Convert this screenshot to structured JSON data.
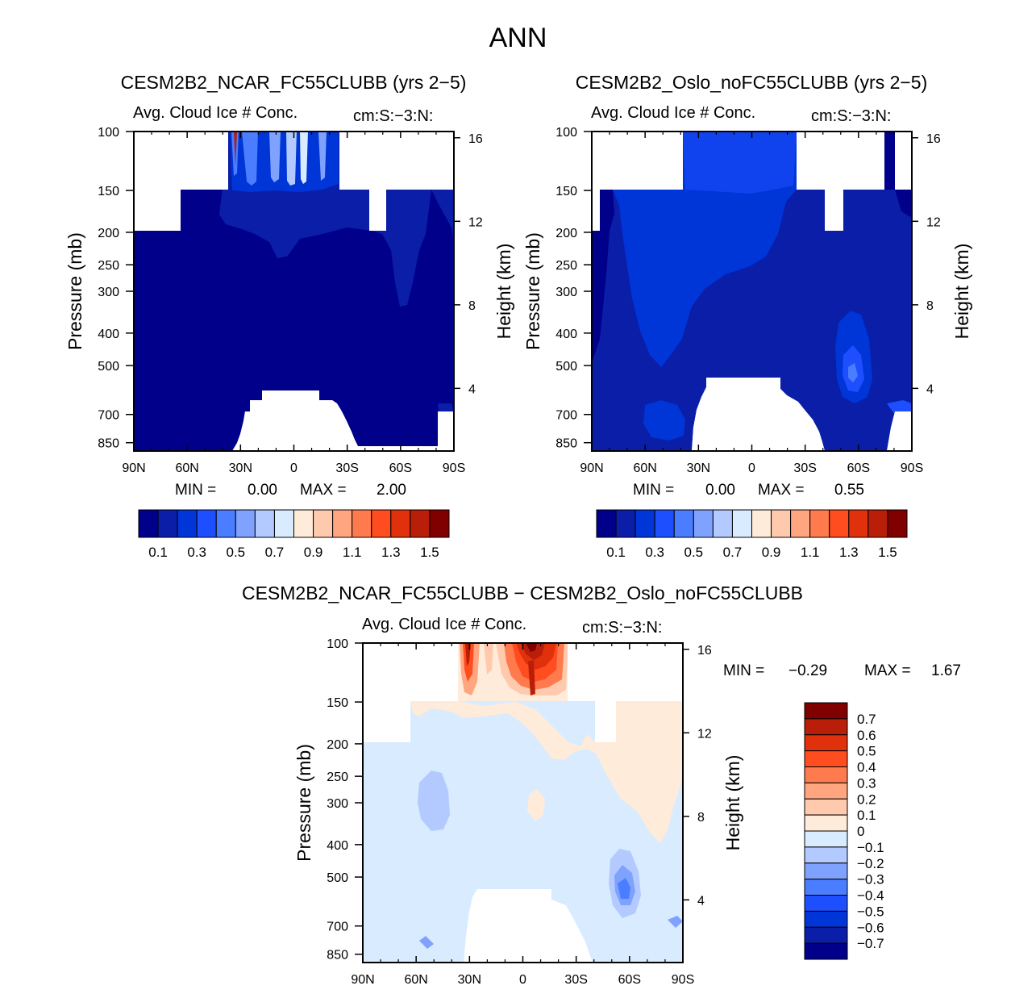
{
  "page_title": "ANN",
  "colors": {
    "left_scale": [
      "#00008b",
      "#0a1ea8",
      "#0035d8",
      "#1e4fff",
      "#4a7dff",
      "#7fa2ff",
      "#b2caff",
      "#d9ebff",
      "#ffebd9",
      "#ffc9ad",
      "#ffa680",
      "#ff7a4d",
      "#ff4d1f",
      "#e0300c",
      "#b81e08",
      "#800000"
    ],
    "diff_scale": [
      "#00008b",
      "#0a1ea8",
      "#0035d8",
      "#1e4fff",
      "#4a7dff",
      "#7fa2ff",
      "#b2caff",
      "#d9ebff",
      "#ffebd9",
      "#ffc9ad",
      "#ffa680",
      "#ff7a4d",
      "#ff4d1f",
      "#e0300c",
      "#b81e08",
      "#800000"
    ]
  },
  "chart_data": [
    {
      "type": "heatmap",
      "id": "top-left",
      "case_title": "CESM2B2_NCAR_FC55CLUBB (yrs 2−5)",
      "variable": "Avg. Cloud Ice # Conc.",
      "units": "cm:S:−3:N:",
      "ylabel": "Pressure (mb)",
      "ylabel_right": "Height (km)",
      "x_ticks": [
        "90N",
        "60N",
        "30N",
        "0",
        "30S",
        "60S",
        "90S"
      ],
      "y_ticks": [
        "100",
        "150",
        "200",
        "250",
        "300",
        "400",
        "500",
        "700",
        "850"
      ],
      "y_right_ticks": [
        "16",
        "12",
        "8",
        "4"
      ],
      "xlim": [
        90,
        -90
      ],
      "ylim": [
        100,
        900
      ],
      "min_label": "MIN =",
      "min_value": "0.00",
      "max_label": "MAX =",
      "max_value": "2.00",
      "colorbar_labels": [
        "0.1",
        "0.3",
        "0.5",
        "0.7",
        "0.9",
        "1.1",
        "1.3",
        "1.5"
      ]
    },
    {
      "type": "heatmap",
      "id": "top-right",
      "case_title": "CESM2B2_Oslo_noFC55CLUBB (yrs 2−5)",
      "variable": "Avg. Cloud Ice # Conc.",
      "units": "cm:S:−3:N:",
      "ylabel": "Pressure (mb)",
      "ylabel_right": "Height (km)",
      "x_ticks": [
        "90N",
        "60N",
        "30N",
        "0",
        "30S",
        "60S",
        "90S"
      ],
      "y_ticks": [
        "100",
        "150",
        "200",
        "250",
        "300",
        "400",
        "500",
        "700",
        "850"
      ],
      "y_right_ticks": [
        "16",
        "12",
        "8",
        "4"
      ],
      "xlim": [
        90,
        -90
      ],
      "ylim": [
        100,
        900
      ],
      "min_label": "MIN =",
      "min_value": "0.00",
      "max_label": "MAX =",
      "max_value": "0.55",
      "colorbar_labels": [
        "0.1",
        "0.3",
        "0.5",
        "0.7",
        "0.9",
        "1.1",
        "1.3",
        "1.5"
      ]
    },
    {
      "type": "heatmap",
      "id": "bottom-diff",
      "case_title": "CESM2B2_NCAR_FC55CLUBB − CESM2B2_Oslo_noFC55CLUBB",
      "variable": "Avg. Cloud Ice # Conc.",
      "units": "cm:S:−3:N:",
      "ylabel": "Pressure (mb)",
      "ylabel_right": "Height (km)",
      "x_ticks": [
        "90N",
        "60N",
        "30N",
        "0",
        "30S",
        "60S",
        "90S"
      ],
      "y_ticks": [
        "100",
        "150",
        "200",
        "250",
        "300",
        "400",
        "500",
        "700",
        "850"
      ],
      "y_right_ticks": [
        "16",
        "12",
        "8",
        "4"
      ],
      "xlim": [
        90,
        -90
      ],
      "ylim": [
        100,
        900
      ],
      "min_label": "MIN =",
      "min_value": "−0.29",
      "max_label": "MAX =",
      "max_value": "1.67",
      "colorbar_labels": [
        "0.7",
        "0.6",
        "0.5",
        "0.4",
        "0.3",
        "0.2",
        "0.1",
        "0",
        "−0.1",
        "−0.2",
        "−0.3",
        "−0.4",
        "−0.5",
        "−0.6",
        "−0.7"
      ]
    }
  ]
}
